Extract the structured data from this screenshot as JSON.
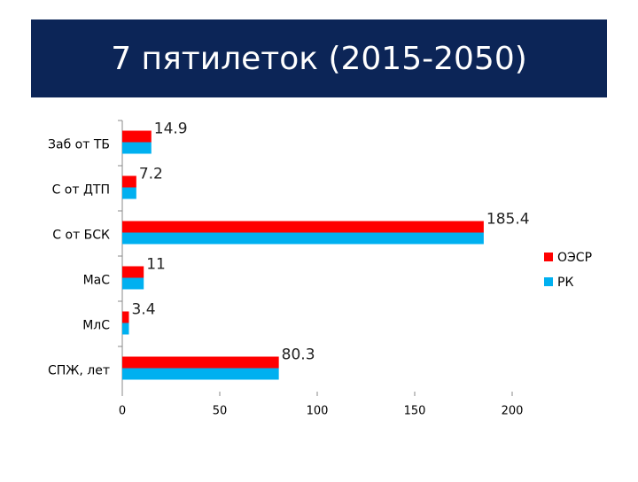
{
  "chart_data": {
    "type": "hbar",
    "title": "7 пятилеток (2015-2050)",
    "categories": [
      "Заб от ТБ",
      "С от ДТП",
      "С от БСК",
      "МаС",
      "МлС",
      "СПЖ, лет"
    ],
    "series": [
      {
        "name": "ОЭСР",
        "color": "#ff0000",
        "values": [
          14.9,
          7.2,
          185.4,
          11,
          3.4,
          80.3
        ]
      },
      {
        "name": "РК",
        "color": "#00b0f0",
        "values": [
          14.9,
          7.2,
          185.4,
          11,
          3.4,
          80.3
        ]
      }
    ],
    "xlim": [
      0,
      200
    ],
    "xticks": [
      0,
      50,
      100,
      150,
      200
    ],
    "legend": "right"
  }
}
